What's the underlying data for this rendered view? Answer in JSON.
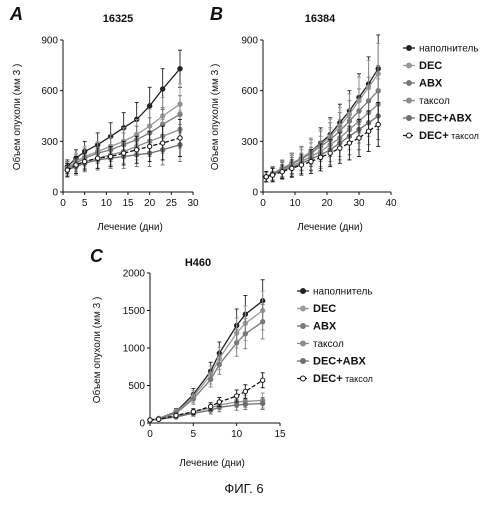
{
  "figure_caption": "ФИГ. 6",
  "legend": [
    {
      "label": "наполнитель",
      "bold": false
    },
    {
      "label": "DEC",
      "bold": true
    },
    {
      "label": "ABX",
      "bold": true
    },
    {
      "label": "таксол",
      "bold": false
    },
    {
      "label": "DEC+ABX",
      "bold": true
    },
    {
      "label": "DEC+ таксол",
      "bold": false,
      "bold_prefix": "DEC+",
      "suffix": " таксол"
    }
  ],
  "colors": {
    "vehicle": "#222222",
    "dec": "#9a9a9a",
    "abx": "#7a7a7a",
    "taxol": "#8c8c8c",
    "decabx": "#6e6e6e",
    "dectaxol": "#111111"
  },
  "chart_data": [
    {
      "panel": "A",
      "type": "line",
      "title": "16325",
      "xlabel": "Лечение (дни)",
      "ylabel": "Объем опухоли (мм 3 )",
      "xlim": [
        0,
        30
      ],
      "ylim": [
        0,
        900
      ],
      "xticks": [
        0,
        5,
        10,
        15,
        20,
        25,
        30
      ],
      "yticks": [
        0,
        300,
        600,
        900
      ],
      "grid": false,
      "legend_position": "right",
      "x": [
        1,
        3,
        5,
        8,
        11,
        14,
        17,
        20,
        23,
        27
      ],
      "series": [
        {
          "name": "наполнитель",
          "key": "vehicle",
          "values": [
            150,
            200,
            240,
            280,
            330,
            380,
            430,
            510,
            610,
            730
          ],
          "err": [
            40,
            50,
            60,
            70,
            80,
            90,
            100,
            110,
            120,
            110
          ]
        },
        {
          "name": "DEC",
          "key": "dec",
          "values": [
            140,
            180,
            210,
            240,
            270,
            300,
            340,
            390,
            450,
            520
          ],
          "err": [
            40,
            50,
            60,
            60,
            70,
            80,
            90,
            100,
            110,
            120
          ]
        },
        {
          "name": "ABX",
          "key": "abx",
          "values": [
            140,
            170,
            200,
            230,
            250,
            280,
            310,
            350,
            400,
            460
          ],
          "err": [
            40,
            50,
            60,
            60,
            70,
            70,
            80,
            90,
            100,
            110
          ]
        },
        {
          "name": "таксол",
          "key": "taxol",
          "values": [
            130,
            160,
            180,
            200,
            220,
            240,
            270,
            300,
            330,
            370
          ],
          "err": [
            40,
            50,
            50,
            60,
            60,
            70,
            80,
            90,
            100,
            110
          ]
        },
        {
          "name": "DEC+ABX",
          "key": "decabx",
          "values": [
            130,
            150,
            170,
            190,
            200,
            210,
            220,
            230,
            250,
            280
          ],
          "err": [
            40,
            50,
            50,
            60,
            60,
            70,
            70,
            80,
            90,
            100
          ]
        },
        {
          "name": "DEC+ таксол",
          "key": "dectaxol",
          "values": [
            130,
            160,
            180,
            200,
            210,
            230,
            250,
            270,
            290,
            320
          ],
          "err": [
            40,
            50,
            50,
            60,
            60,
            70,
            80,
            90,
            100,
            110
          ]
        }
      ]
    },
    {
      "panel": "B",
      "type": "line",
      "title": "16384",
      "xlabel": "Лечение (дни)",
      "ylabel": "Объем опухоли (мм 3 )",
      "xlim": [
        0,
        40
      ],
      "ylim": [
        0,
        900
      ],
      "xticks": [
        0,
        10,
        20,
        30,
        40
      ],
      "yticks": [
        0,
        300,
        600,
        900
      ],
      "grid": false,
      "x": [
        1,
        3,
        6,
        9,
        12,
        15,
        18,
        21,
        24,
        27,
        30,
        33,
        36
      ],
      "series": [
        {
          "name": "наполнитель",
          "key": "vehicle",
          "values": [
            90,
            110,
            140,
            170,
            200,
            240,
            290,
            340,
            410,
            480,
            560,
            640,
            730
          ],
          "err": [
            30,
            40,
            50,
            60,
            70,
            80,
            90,
            100,
            110,
            120,
            140,
            160,
            200
          ]
        },
        {
          "name": "DEC",
          "key": "dec",
          "values": [
            90,
            110,
            140,
            170,
            200,
            240,
            280,
            330,
            390,
            460,
            540,
            620,
            700
          ],
          "err": [
            30,
            40,
            50,
            60,
            70,
            80,
            90,
            100,
            110,
            120,
            140,
            160,
            180
          ]
        },
        {
          "name": "ABX",
          "key": "abx",
          "values": [
            90,
            110,
            135,
            165,
            195,
            230,
            270,
            310,
            360,
            420,
            480,
            540,
            600
          ],
          "err": [
            30,
            40,
            50,
            60,
            70,
            80,
            90,
            100,
            110,
            120,
            130,
            140,
            150
          ]
        },
        {
          "name": "таксол",
          "key": "taxol",
          "values": [
            90,
            105,
            130,
            155,
            180,
            210,
            240,
            280,
            320,
            370,
            420,
            470,
            520
          ],
          "err": [
            30,
            40,
            50,
            60,
            70,
            80,
            90,
            100,
            110,
            120,
            130,
            140,
            150
          ]
        },
        {
          "name": "DEC+ABX",
          "key": "decabx",
          "values": [
            90,
            105,
            125,
            145,
            170,
            195,
            220,
            250,
            290,
            330,
            370,
            410,
            450
          ],
          "err": [
            30,
            40,
            50,
            60,
            60,
            70,
            80,
            90,
            100,
            110,
            120,
            130,
            140
          ]
        },
        {
          "name": "DEC+ таксол",
          "key": "dectaxol",
          "values": [
            90,
            100,
            120,
            140,
            160,
            180,
            205,
            230,
            260,
            290,
            320,
            360,
            400
          ],
          "err": [
            30,
            40,
            40,
            50,
            60,
            70,
            80,
            80,
            90,
            100,
            110,
            120,
            130
          ]
        }
      ]
    },
    {
      "panel": "C",
      "type": "line",
      "title": "H460",
      "xlabel": "Лечение (дни)",
      "ylabel": "Объем опухоли (мм 3 )",
      "xlim": [
        0,
        15
      ],
      "ylim": [
        0,
        2000
      ],
      "xticks": [
        0,
        5,
        10,
        15
      ],
      "yticks": [
        0,
        500,
        1000,
        1500,
        2000
      ],
      "grid": false,
      "legend_position": "right",
      "x": [
        0,
        1,
        3,
        5,
        7,
        8,
        10,
        11,
        13
      ],
      "series": [
        {
          "name": "наполнитель",
          "key": "vehicle",
          "values": [
            40,
            60,
            150,
            380,
            690,
            930,
            1300,
            1450,
            1630
          ],
          "err": [
            10,
            20,
            40,
            80,
            120,
            150,
            220,
            250,
            280
          ]
        },
        {
          "name": "DEC",
          "key": "dec",
          "values": [
            40,
            60,
            140,
            350,
            640,
            860,
            1200,
            1330,
            1500
          ],
          "err": [
            10,
            20,
            40,
            80,
            120,
            150,
            200,
            230,
            260
          ]
        },
        {
          "name": "ABX",
          "key": "abx",
          "values": [
            40,
            55,
            130,
            320,
            580,
            780,
            1070,
            1190,
            1350
          ],
          "err": [
            10,
            20,
            40,
            70,
            100,
            130,
            180,
            200,
            230
          ]
        },
        {
          "name": "таксол",
          "key": "taxol",
          "values": [
            40,
            50,
            90,
            150,
            200,
            240,
            280,
            290,
            300
          ],
          "err": [
            10,
            15,
            30,
            40,
            50,
            60,
            70,
            80,
            100
          ]
        },
        {
          "name": "DEC+ABX",
          "key": "decabx",
          "values": [
            40,
            50,
            80,
            130,
            170,
            210,
            240,
            250,
            260
          ],
          "err": [
            10,
            15,
            25,
            40,
            50,
            60,
            70,
            70,
            80
          ]
        },
        {
          "name": "DEC+ таксол",
          "key": "dectaxol",
          "values": [
            40,
            50,
            100,
            150,
            220,
            280,
            360,
            420,
            570
          ],
          "err": [
            10,
            15,
            30,
            40,
            50,
            60,
            80,
            90,
            100
          ]
        }
      ]
    }
  ]
}
